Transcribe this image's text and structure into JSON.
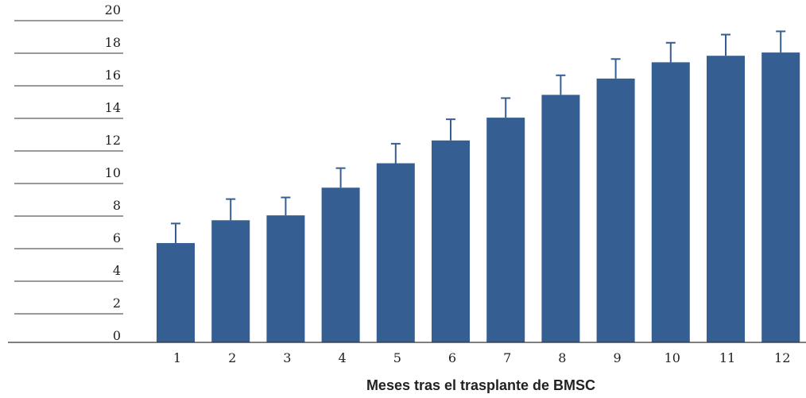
{
  "chart_data": {
    "type": "bar",
    "title": "",
    "xlabel": "Meses tras el trasplante de BMSC",
    "ylabel": "",
    "categories": [
      "1",
      "2",
      "3",
      "4",
      "5",
      "6",
      "7",
      "8",
      "9",
      "10",
      "11",
      "12"
    ],
    "values": [
      6.1,
      7.5,
      7.8,
      9.5,
      11.0,
      12.4,
      13.8,
      15.2,
      16.2,
      17.2,
      17.6,
      17.8
    ],
    "error": [
      1.2,
      1.3,
      1.1,
      1.2,
      1.2,
      1.3,
      1.2,
      1.2,
      1.2,
      1.2,
      1.3,
      1.3
    ],
    "ylim": [
      0,
      20
    ],
    "yticks": [
      "0",
      "2",
      "4",
      "6",
      "8",
      "10",
      "12",
      "14",
      "16",
      "18",
      "20"
    ],
    "grid": false,
    "legend": "none",
    "colors": {
      "bar": "#355e92",
      "axis": "#333333"
    }
  }
}
